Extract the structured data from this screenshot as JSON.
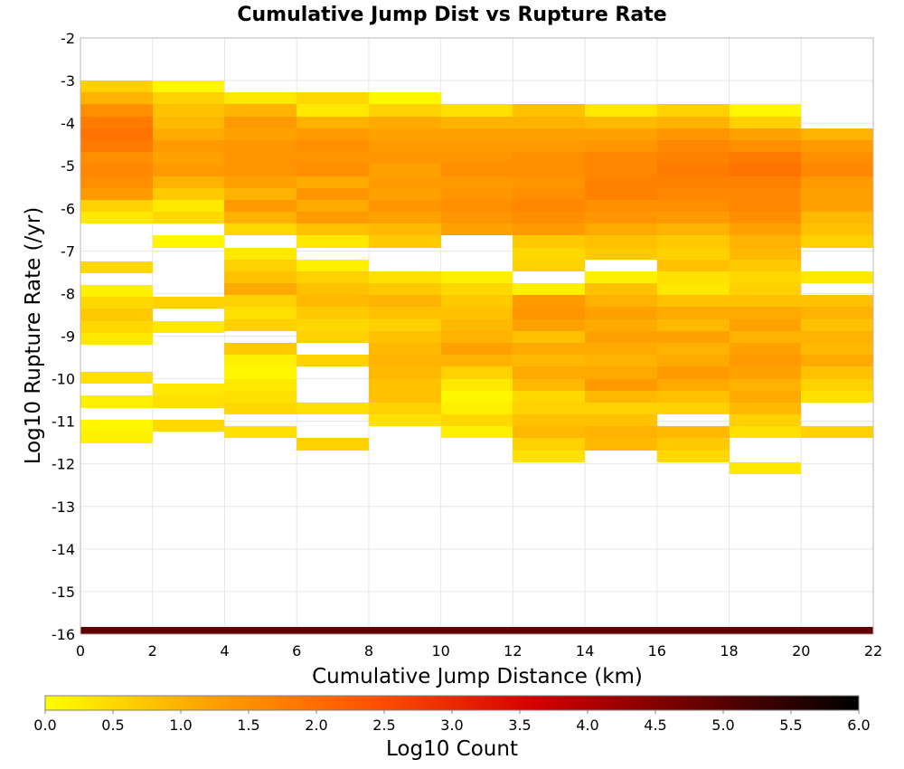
{
  "chart_data": {
    "type": "heatmap",
    "title": "Cumulative Jump Dist vs Rupture Rate",
    "xlabel": "Cumulative Jump Distance (km)",
    "ylabel": "Log10 Rupture Rate (/yr)",
    "xlim": [
      0,
      22
    ],
    "ylim": [
      -16,
      -2
    ],
    "xticks": [
      "0",
      "2",
      "4",
      "6",
      "8",
      "10",
      "12",
      "14",
      "16",
      "18",
      "20",
      "22"
    ],
    "yticks": [
      "-2",
      "-3",
      "-4",
      "-5",
      "-6",
      "-7",
      "-8",
      "-9",
      "-10",
      "-11",
      "-12",
      "-13",
      "-14",
      "-15",
      "-16"
    ],
    "grid": true,
    "x_bin_width": 2,
    "y_bin_height": 0.28,
    "colorbar": {
      "label": "Log10 Count",
      "range": [
        0.0,
        6.0
      ],
      "ticks": [
        "0.0",
        "0.5",
        "1.0",
        "1.5",
        "2.0",
        "2.5",
        "3.0",
        "3.5",
        "4.0",
        "4.5",
        "5.0",
        "5.5",
        "6.0"
      ],
      "colors": [
        "#ffff00",
        "#ffa200",
        "#ff5300",
        "#d40000",
        "#6a0000",
        "#000000"
      ]
    },
    "columns": [
      {
        "x_start": 0,
        "cells": [
          [
            -3.0,
            0.6
          ],
          [
            -3.28,
            1.0
          ],
          [
            -3.56,
            1.5
          ],
          [
            -3.84,
            1.8
          ],
          [
            -4.12,
            1.9
          ],
          [
            -4.4,
            1.8
          ],
          [
            -4.68,
            1.5
          ],
          [
            -4.96,
            1.6
          ],
          [
            -5.24,
            1.5
          ],
          [
            -5.52,
            1.3
          ],
          [
            -5.8,
            0.6
          ],
          [
            -6.08,
            0.3
          ],
          [
            -7.24,
            0.5
          ],
          [
            -7.8,
            0.2
          ],
          [
            -8.08,
            0.5
          ],
          [
            -8.36,
            0.7
          ],
          [
            -8.64,
            0.5
          ],
          [
            -8.92,
            0.3
          ],
          [
            -9.84,
            0.4
          ],
          [
            -10.4,
            0.2
          ],
          [
            -10.96,
            0.1
          ],
          [
            -11.24,
            0.2
          ]
        ]
      },
      {
        "x_start": 2,
        "cells": [
          [
            -3.0,
            0.1
          ],
          [
            -3.28,
            0.6
          ],
          [
            -3.56,
            0.8
          ],
          [
            -3.84,
            0.9
          ],
          [
            -4.12,
            1.1
          ],
          [
            -4.4,
            1.3
          ],
          [
            -4.68,
            1.2
          ],
          [
            -4.96,
            1.3
          ],
          [
            -5.24,
            1.0
          ],
          [
            -5.52,
            0.7
          ],
          [
            -5.8,
            0.3
          ],
          [
            -6.08,
            0.5
          ],
          [
            -6.64,
            0.1
          ],
          [
            -8.08,
            0.6
          ],
          [
            -8.64,
            0.3
          ],
          [
            -10.12,
            0.3
          ],
          [
            -10.4,
            0.4
          ],
          [
            -10.96,
            0.5
          ]
        ]
      },
      {
        "x_start": 4,
        "cells": [
          [
            -3.28,
            0.3
          ],
          [
            -3.56,
            1.0
          ],
          [
            -3.84,
            1.3
          ],
          [
            -4.12,
            1.2
          ],
          [
            -4.4,
            1.4
          ],
          [
            -4.68,
            1.4
          ],
          [
            -4.96,
            1.4
          ],
          [
            -5.24,
            1.2
          ],
          [
            -5.52,
            1.0
          ],
          [
            -5.8,
            1.3
          ],
          [
            -6.08,
            1.0
          ],
          [
            -6.36,
            0.5
          ],
          [
            -6.92,
            0.3
          ],
          [
            -7.2,
            0.6
          ],
          [
            -7.48,
            0.8
          ],
          [
            -7.76,
            1.1
          ],
          [
            -8.04,
            0.6
          ],
          [
            -8.32,
            0.4
          ],
          [
            -8.6,
            0.6
          ],
          [
            -9.16,
            0.7
          ],
          [
            -9.44,
            0.2
          ],
          [
            -9.72,
            0.1
          ],
          [
            -10.0,
            0.3
          ],
          [
            -10.28,
            0.4
          ],
          [
            -10.56,
            0.5
          ],
          [
            -11.12,
            0.4
          ]
        ]
      },
      {
        "x_start": 6,
        "cells": [
          [
            -3.28,
            0.5
          ],
          [
            -3.56,
            0.3
          ],
          [
            -3.84,
            1.0
          ],
          [
            -4.12,
            1.3
          ],
          [
            -4.4,
            1.5
          ],
          [
            -4.68,
            1.4
          ],
          [
            -4.96,
            1.5
          ],
          [
            -5.24,
            1.1
          ],
          [
            -5.52,
            1.4
          ],
          [
            -5.8,
            1.1
          ],
          [
            -6.08,
            1.3
          ],
          [
            -6.36,
            0.8
          ],
          [
            -6.64,
            0.3
          ],
          [
            -7.2,
            0.2
          ],
          [
            -7.48,
            0.6
          ],
          [
            -7.76,
            0.8
          ],
          [
            -8.04,
            0.9
          ],
          [
            -8.32,
            0.7
          ],
          [
            -8.6,
            0.5
          ],
          [
            -8.88,
            0.6
          ],
          [
            -9.44,
            0.6
          ],
          [
            -10.56,
            0.4
          ],
          [
            -11.4,
            0.6
          ]
        ]
      },
      {
        "x_start": 8,
        "cells": [
          [
            -3.28,
            0.1
          ],
          [
            -3.56,
            0.6
          ],
          [
            -3.84,
            1.1
          ],
          [
            -4.12,
            1.2
          ],
          [
            -4.4,
            1.3
          ],
          [
            -4.68,
            1.4
          ],
          [
            -4.96,
            1.2
          ],
          [
            -5.24,
            1.3
          ],
          [
            -5.52,
            1.2
          ],
          [
            -5.8,
            1.4
          ],
          [
            -6.08,
            1.2
          ],
          [
            -6.36,
            0.9
          ],
          [
            -6.64,
            0.7
          ],
          [
            -7.48,
            0.4
          ],
          [
            -7.76,
            0.7
          ],
          [
            -8.04,
            1.0
          ],
          [
            -8.32,
            0.8
          ],
          [
            -8.6,
            0.6
          ],
          [
            -8.88,
            0.8
          ],
          [
            -9.16,
            0.9
          ],
          [
            -9.44,
            1.0
          ],
          [
            -9.72,
            0.9
          ],
          [
            -10.0,
            0.8
          ],
          [
            -10.28,
            0.8
          ],
          [
            -10.56,
            0.6
          ],
          [
            -10.84,
            0.4
          ]
        ]
      },
      {
        "x_start": 10,
        "cells": [
          [
            -3.56,
            0.4
          ],
          [
            -3.84,
            1.0
          ],
          [
            -4.12,
            1.2
          ],
          [
            -4.4,
            1.3
          ],
          [
            -4.68,
            1.4
          ],
          [
            -4.96,
            1.5
          ],
          [
            -5.24,
            1.3
          ],
          [
            -5.52,
            1.4
          ],
          [
            -5.8,
            1.5
          ],
          [
            -6.08,
            1.4
          ],
          [
            -6.36,
            1.2
          ],
          [
            -7.48,
            0.2
          ],
          [
            -7.76,
            0.5
          ],
          [
            -8.04,
            0.7
          ],
          [
            -8.32,
            0.8
          ],
          [
            -8.6,
            0.9
          ],
          [
            -8.88,
            1.0
          ],
          [
            -9.16,
            1.2
          ],
          [
            -9.44,
            1.0
          ],
          [
            -9.72,
            0.6
          ],
          [
            -10.0,
            0.3
          ],
          [
            -10.28,
            0.1
          ],
          [
            -10.56,
            0.2
          ],
          [
            -10.84,
            0.5
          ],
          [
            -11.12,
            0.2
          ]
        ]
      },
      {
        "x_start": 12,
        "cells": [
          [
            -3.56,
            0.8
          ],
          [
            -3.84,
            1.0
          ],
          [
            -4.12,
            1.2
          ],
          [
            -4.4,
            1.3
          ],
          [
            -4.68,
            1.5
          ],
          [
            -4.96,
            1.5
          ],
          [
            -5.24,
            1.4
          ],
          [
            -5.52,
            1.5
          ],
          [
            -5.8,
            1.6
          ],
          [
            -6.08,
            1.5
          ],
          [
            -6.36,
            1.3
          ],
          [
            -6.64,
            0.7
          ],
          [
            -6.92,
            0.5
          ],
          [
            -7.2,
            0.6
          ],
          [
            -7.76,
            0.2
          ],
          [
            -8.04,
            1.3
          ],
          [
            -8.32,
            1.4
          ],
          [
            -8.6,
            1.2
          ],
          [
            -8.88,
            0.8
          ],
          [
            -9.16,
            1.1
          ],
          [
            -9.44,
            0.9
          ],
          [
            -9.72,
            1.1
          ],
          [
            -10.0,
            0.9
          ],
          [
            -10.28,
            0.5
          ],
          [
            -10.56,
            0.6
          ],
          [
            -10.84,
            0.8
          ],
          [
            -11.12,
            0.9
          ],
          [
            -11.4,
            0.6
          ],
          [
            -11.68,
            0.4
          ]
        ]
      },
      {
        "x_start": 14,
        "cells": [
          [
            -3.56,
            0.3
          ],
          [
            -3.84,
            0.9
          ],
          [
            -4.12,
            1.2
          ],
          [
            -4.4,
            1.4
          ],
          [
            -4.68,
            1.6
          ],
          [
            -4.96,
            1.6
          ],
          [
            -5.24,
            1.7
          ],
          [
            -5.52,
            1.7
          ],
          [
            -5.8,
            1.5
          ],
          [
            -6.08,
            1.4
          ],
          [
            -6.36,
            1.1
          ],
          [
            -6.64,
            0.8
          ],
          [
            -6.92,
            0.7
          ],
          [
            -7.48,
            0.2
          ],
          [
            -7.76,
            0.8
          ],
          [
            -8.04,
            1.0
          ],
          [
            -8.32,
            1.2
          ],
          [
            -8.6,
            1.1
          ],
          [
            -8.88,
            1.2
          ],
          [
            -9.16,
            1.1
          ],
          [
            -9.44,
            1.0
          ],
          [
            -9.72,
            1.1
          ],
          [
            -10.0,
            1.3
          ],
          [
            -10.28,
            0.9
          ],
          [
            -10.56,
            0.6
          ],
          [
            -10.84,
            0.8
          ],
          [
            -11.12,
            1.0
          ],
          [
            -11.4,
            0.9
          ]
        ]
      },
      {
        "x_start": 16,
        "cells": [
          [
            -3.56,
            0.6
          ],
          [
            -3.84,
            1.0
          ],
          [
            -4.12,
            1.4
          ],
          [
            -4.4,
            1.6
          ],
          [
            -4.68,
            1.7
          ],
          [
            -4.96,
            1.8
          ],
          [
            -5.24,
            1.7
          ],
          [
            -5.52,
            1.6
          ],
          [
            -5.8,
            1.5
          ],
          [
            -6.08,
            1.3
          ],
          [
            -6.36,
            1.0
          ],
          [
            -6.64,
            0.7
          ],
          [
            -6.92,
            0.6
          ],
          [
            -7.2,
            0.8
          ],
          [
            -7.48,
            0.4
          ],
          [
            -7.76,
            0.3
          ],
          [
            -8.04,
            0.8
          ],
          [
            -8.32,
            1.1
          ],
          [
            -8.6,
            0.9
          ],
          [
            -8.88,
            1.2
          ],
          [
            -9.16,
            1.0
          ],
          [
            -9.44,
            1.1
          ],
          [
            -9.72,
            1.3
          ],
          [
            -10.0,
            1.1
          ],
          [
            -10.28,
            0.8
          ],
          [
            -10.56,
            0.6
          ],
          [
            -11.12,
            0.9
          ],
          [
            -11.4,
            0.7
          ],
          [
            -11.68,
            0.5
          ]
        ]
      },
      {
        "x_start": 18,
        "cells": [
          [
            -3.56,
            0.1
          ],
          [
            -3.84,
            0.6
          ],
          [
            -4.12,
            1.2
          ],
          [
            -4.4,
            1.5
          ],
          [
            -4.68,
            1.8
          ],
          [
            -4.96,
            1.9
          ],
          [
            -5.24,
            1.7
          ],
          [
            -5.52,
            1.6
          ],
          [
            -5.8,
            1.6
          ],
          [
            -6.08,
            1.5
          ],
          [
            -6.36,
            1.2
          ],
          [
            -6.64,
            1.0
          ],
          [
            -6.92,
            0.9
          ],
          [
            -7.2,
            0.7
          ],
          [
            -7.48,
            0.5
          ],
          [
            -7.76,
            0.6
          ],
          [
            -8.04,
            0.8
          ],
          [
            -8.32,
            1.1
          ],
          [
            -8.6,
            1.2
          ],
          [
            -8.88,
            1.0
          ],
          [
            -9.16,
            1.2
          ],
          [
            -9.44,
            1.3
          ],
          [
            -9.72,
            1.2
          ],
          [
            -10.0,
            1.0
          ],
          [
            -10.28,
            1.1
          ],
          [
            -10.56,
            0.9
          ],
          [
            -10.84,
            0.6
          ],
          [
            -11.12,
            0.4
          ],
          [
            -11.96,
            0.3
          ]
        ]
      },
      {
        "x_start": 20,
        "cells": [
          [
            -4.12,
            1.0
          ],
          [
            -4.4,
            1.3
          ],
          [
            -4.68,
            1.5
          ],
          [
            -4.96,
            1.6
          ],
          [
            -5.24,
            1.3
          ],
          [
            -5.52,
            1.2
          ],
          [
            -5.8,
            1.2
          ],
          [
            -6.08,
            0.9
          ],
          [
            -6.36,
            0.8
          ],
          [
            -6.64,
            0.6
          ],
          [
            -7.48,
            0.3
          ],
          [
            -8.04,
            0.8
          ],
          [
            -8.32,
            1.0
          ],
          [
            -8.6,
            0.8
          ],
          [
            -8.88,
            1.0
          ],
          [
            -9.16,
            0.9
          ],
          [
            -9.44,
            1.1
          ],
          [
            -9.72,
            0.8
          ],
          [
            -10.0,
            0.6
          ],
          [
            -10.28,
            0.4
          ],
          [
            -11.12,
            0.6
          ]
        ]
      }
    ],
    "baseline_band": {
      "y": -16,
      "x_range": [
        0,
        22
      ],
      "value": 4.9
    }
  }
}
